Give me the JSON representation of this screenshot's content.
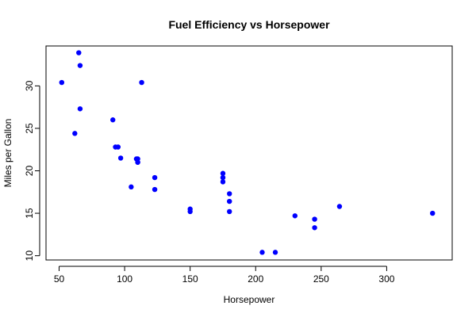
{
  "chart_data": {
    "type": "scatter",
    "title": "Fuel Efficiency vs Horsepower",
    "xlabel": "Horsepower",
    "ylabel": "Miles per Gallon",
    "xlim": [
      40,
      350
    ],
    "ylim": [
      9.5,
      34.7
    ],
    "x_ticks": [
      50,
      100,
      150,
      200,
      250,
      300
    ],
    "y_ticks": [
      10,
      15,
      20,
      25,
      30
    ],
    "x_tick_labels": [
      "50",
      "100",
      "150",
      "200",
      "250",
      "300"
    ],
    "y_tick_labels": [
      "10",
      "15",
      "20",
      "25",
      "30"
    ],
    "grid": false,
    "legend": "none",
    "point_color": "#0000ff",
    "points": [
      {
        "x": 110,
        "y": 21.0
      },
      {
        "x": 110,
        "y": 21.0
      },
      {
        "x": 93,
        "y": 22.8
      },
      {
        "x": 110,
        "y": 21.4
      },
      {
        "x": 175,
        "y": 18.7
      },
      {
        "x": 105,
        "y": 18.1
      },
      {
        "x": 245,
        "y": 14.3
      },
      {
        "x": 62,
        "y": 24.4
      },
      {
        "x": 95,
        "y": 22.8
      },
      {
        "x": 123,
        "y": 19.2
      },
      {
        "x": 123,
        "y": 17.8
      },
      {
        "x": 180,
        "y": 16.4
      },
      {
        "x": 180,
        "y": 17.3
      },
      {
        "x": 180,
        "y": 15.2
      },
      {
        "x": 205,
        "y": 10.4
      },
      {
        "x": 215,
        "y": 10.4
      },
      {
        "x": 230,
        "y": 14.7
      },
      {
        "x": 66,
        "y": 32.4
      },
      {
        "x": 52,
        "y": 30.4
      },
      {
        "x": 65,
        "y": 33.9
      },
      {
        "x": 97,
        "y": 21.5
      },
      {
        "x": 150,
        "y": 15.5
      },
      {
        "x": 150,
        "y": 15.2
      },
      {
        "x": 245,
        "y": 13.3
      },
      {
        "x": 175,
        "y": 19.2
      },
      {
        "x": 66,
        "y": 27.3
      },
      {
        "x": 91,
        "y": 26.0
      },
      {
        "x": 113,
        "y": 30.4
      },
      {
        "x": 264,
        "y": 15.8
      },
      {
        "x": 175,
        "y": 19.7
      },
      {
        "x": 335,
        "y": 15.0
      },
      {
        "x": 109,
        "y": 21.4
      }
    ]
  }
}
